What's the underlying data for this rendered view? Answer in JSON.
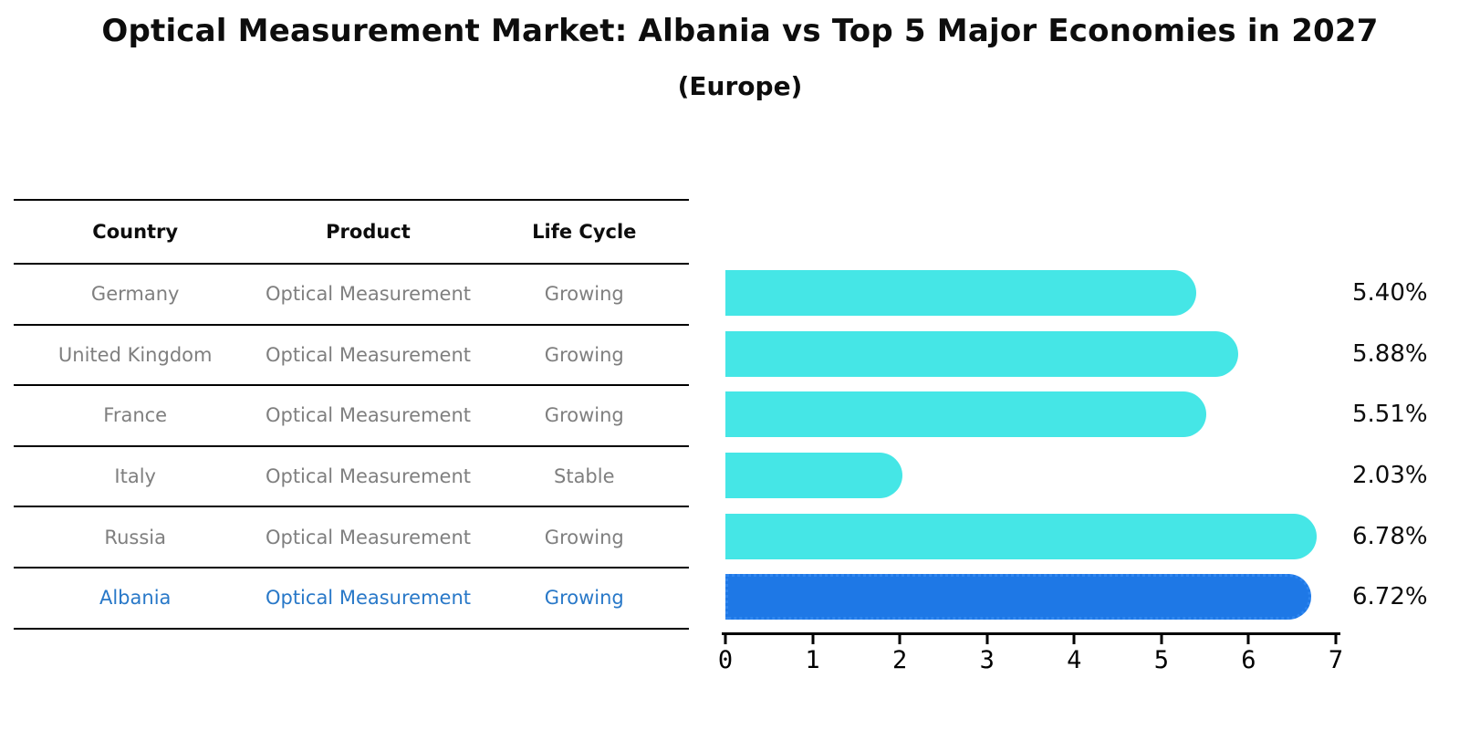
{
  "title": "Optical Measurement Market: Albania vs Top 5 Major Economies in 2027",
  "subtitle": "(Europe)",
  "table": {
    "headers": [
      "Country",
      "Product",
      "Life Cycle"
    ],
    "rows": [
      {
        "country": "Germany",
        "product": "Optical Measurement",
        "life_cycle": "Growing",
        "highlight": false
      },
      {
        "country": "United Kingdom",
        "product": "Optical Measurement",
        "life_cycle": "Growing",
        "highlight": false
      },
      {
        "country": "France",
        "product": "Optical Measurement",
        "life_cycle": "Growing",
        "highlight": false
      },
      {
        "country": "Italy",
        "product": "Optical Measurement",
        "life_cycle": "Stable",
        "highlight": false
      },
      {
        "country": "Russia",
        "product": "Optical Measurement",
        "life_cycle": "Growing",
        "highlight": false
      },
      {
        "country": "Albania",
        "product": "Optical Measurement",
        "life_cycle": "Growing",
        "highlight": true
      }
    ]
  },
  "chart_data": {
    "type": "bar",
    "orientation": "horizontal",
    "title": "Optical Measurement Market: Albania vs Top 5 Major Economies in 2027",
    "subtitle": "(Europe)",
    "categories": [
      "Germany",
      "United Kingdom",
      "France",
      "Italy",
      "Russia",
      "Albania"
    ],
    "values": [
      5.4,
      5.88,
      5.51,
      2.03,
      6.78,
      6.72
    ],
    "value_labels": [
      "5.40%",
      "5.88%",
      "5.51%",
      "2.03%",
      "6.78%",
      "6.72%"
    ],
    "xlim": [
      0,
      7
    ],
    "x_ticks": [
      0,
      1,
      2,
      3,
      4,
      5,
      6,
      7
    ],
    "grid": false,
    "legend": false,
    "highlight_index": 5
  },
  "colors": {
    "bar": "#45e6e6",
    "highlight_bar": "#1e78e6",
    "highlight_bar_border": "#2e86f0",
    "highlight_text": "#2878c8",
    "table_text": "#7f7f7f",
    "axis": "#000000"
  }
}
